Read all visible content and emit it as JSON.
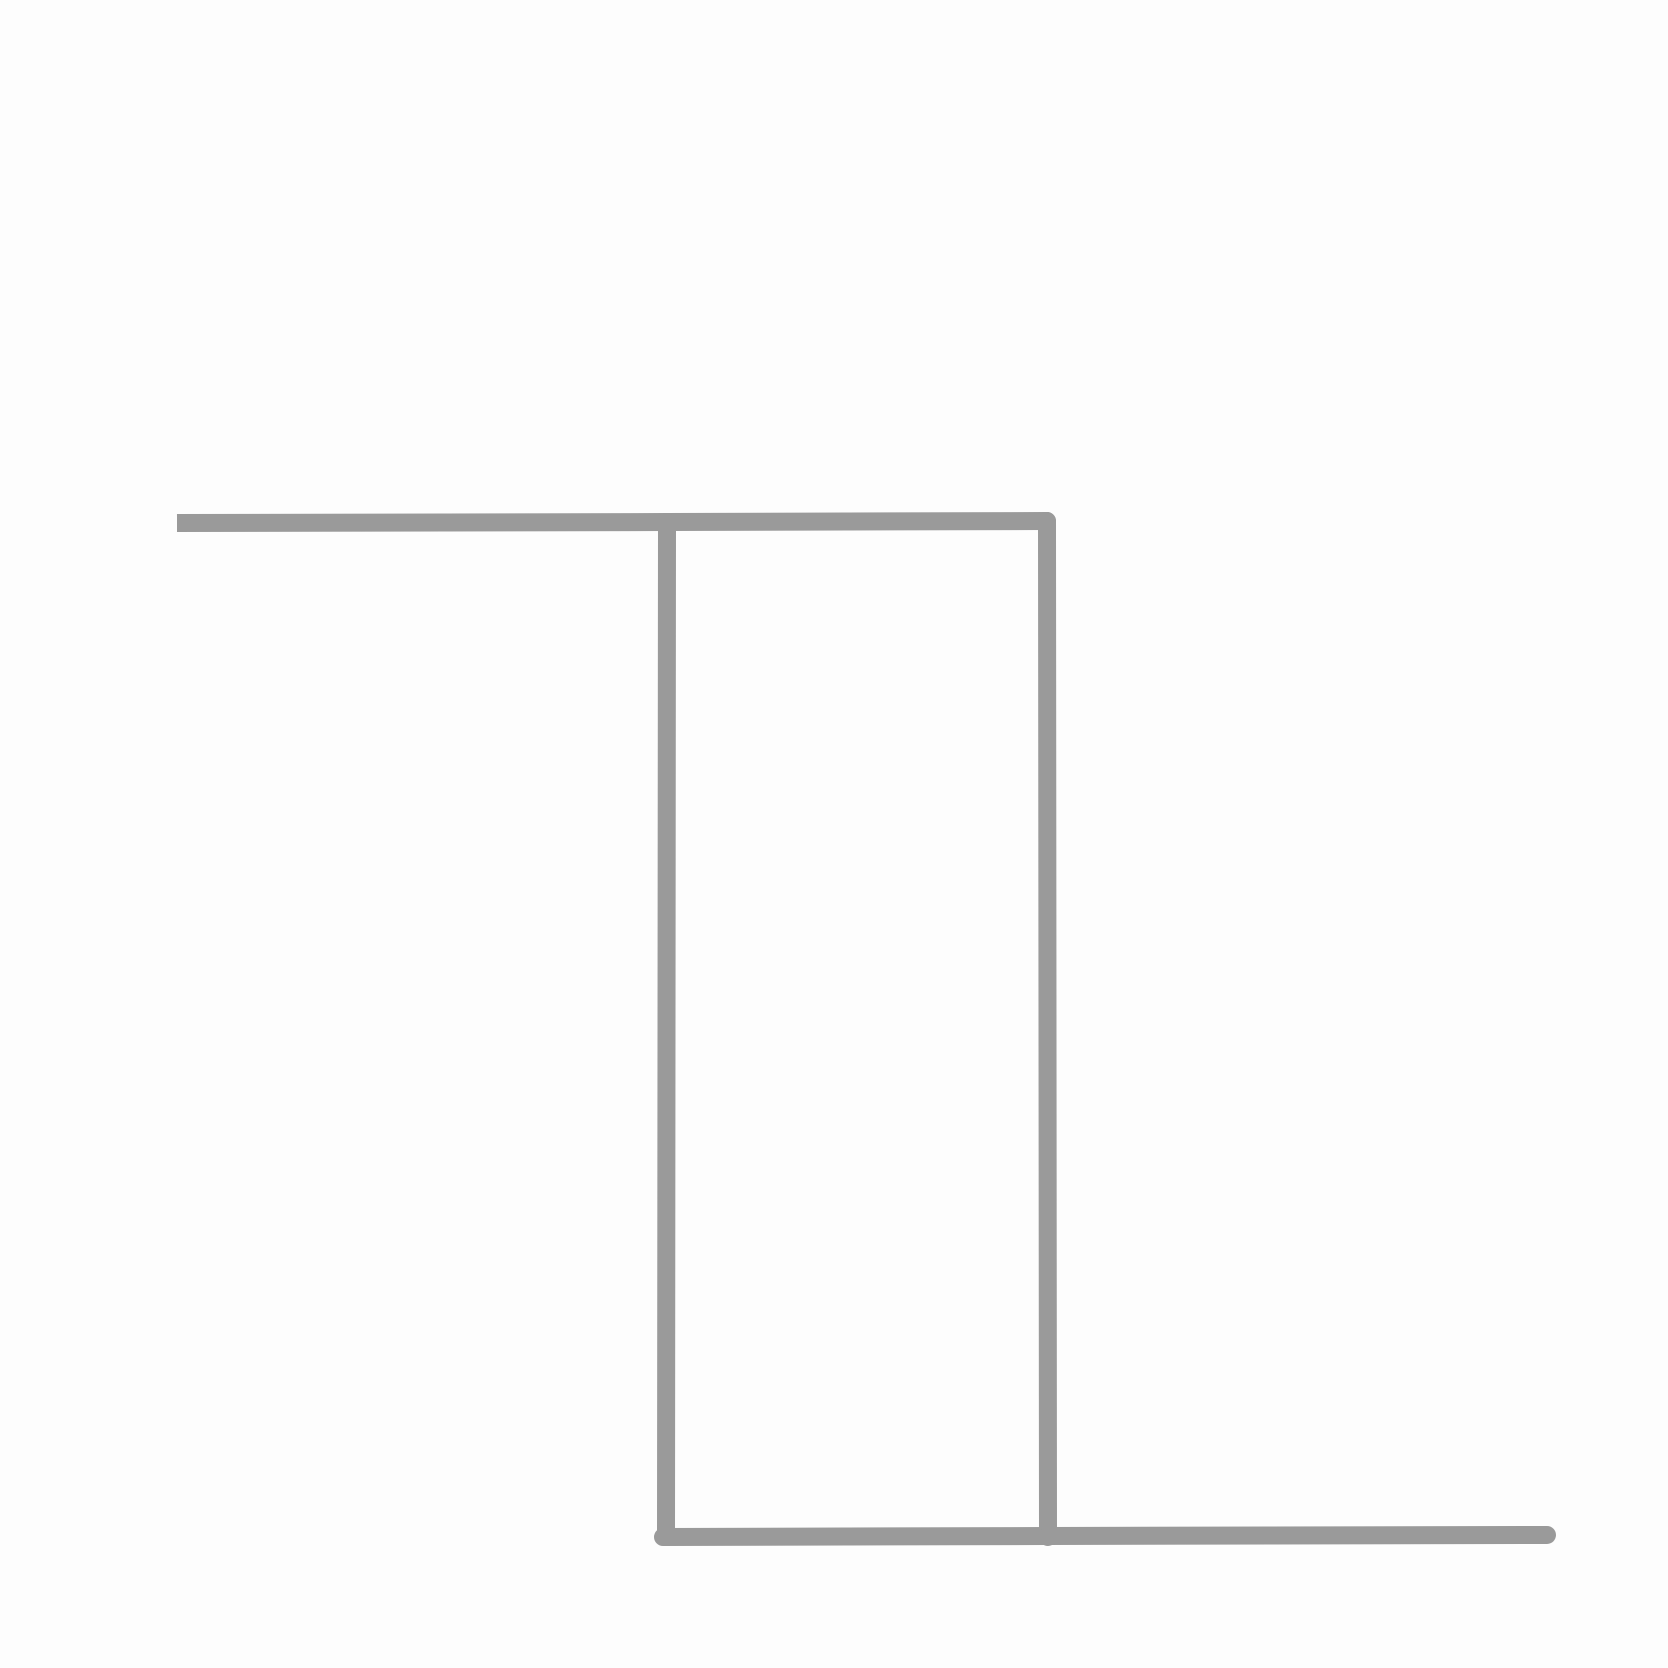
{
  "diagram": {
    "background": "#fdfdfd",
    "line_color": "#9a9a9a",
    "description_items": [
      "left-horizontal-wire",
      "left-vertical-wire",
      "right-vertical-wire",
      "bottom-horizontal-wire"
    ]
  }
}
